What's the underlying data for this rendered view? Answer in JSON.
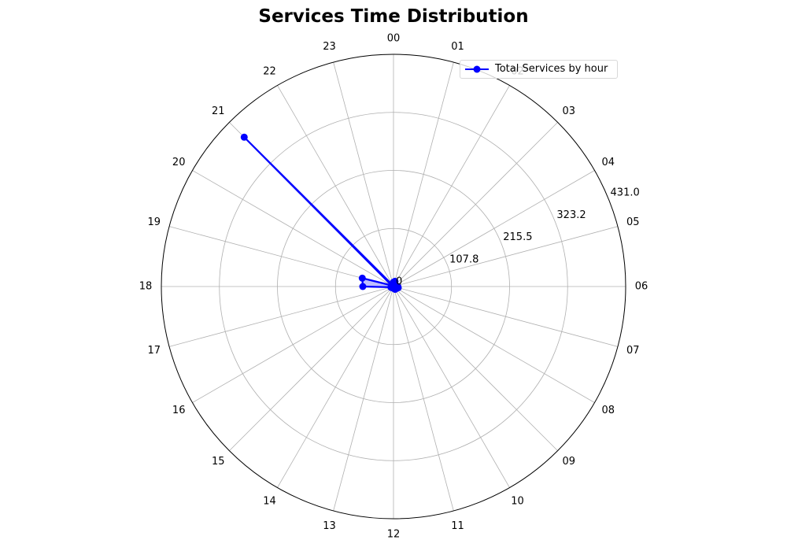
{
  "chart_data": {
    "type": "line",
    "projection": "polar",
    "title": "Services Time Distribution",
    "categories": [
      "00",
      "01",
      "02",
      "03",
      "04",
      "05",
      "06",
      "07",
      "08",
      "09",
      "10",
      "11",
      "12",
      "13",
      "14",
      "15",
      "16",
      "17",
      "18",
      "19",
      "20",
      "21",
      "22",
      "23"
    ],
    "series": [
      {
        "name": "Total Services by hour",
        "color": "#0000ff",
        "fill": "rgba(0,0,255,0.25)",
        "values": [
          8,
          10,
          5,
          3,
          2,
          3,
          8,
          9,
          4,
          6,
          6,
          2,
          3,
          3,
          3,
          3,
          4,
          5,
          57,
          60,
          4,
          392,
          3,
          4
        ]
      }
    ],
    "rlim": [
      0,
      431.0
    ],
    "radial_ticks": [
      "0",
      "107.8",
      "215.5",
      "323.2",
      "431.0"
    ],
    "radial_tick_values": [
      0,
      107.75,
      215.5,
      323.25,
      431.0
    ],
    "direction": "clockwise",
    "zero_location": "top",
    "grid": true,
    "legend_position": "top-right"
  }
}
